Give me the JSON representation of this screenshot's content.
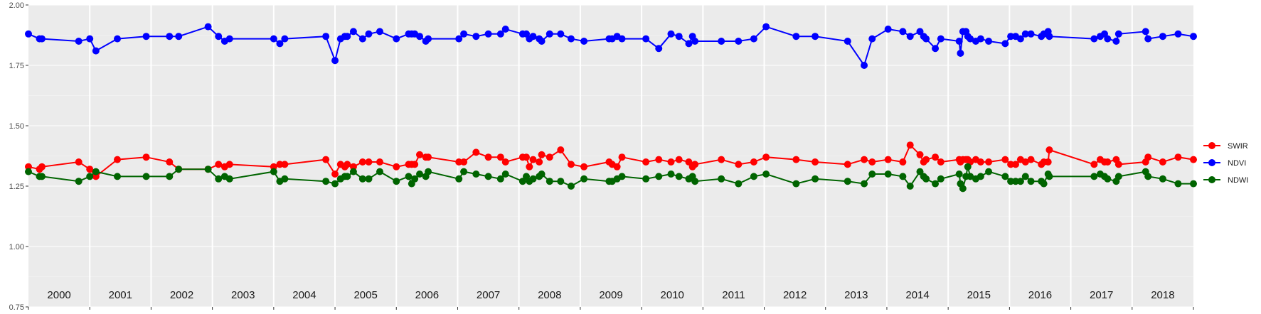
{
  "chart_data": {
    "type": "line",
    "title": "",
    "xlabel": "",
    "ylabel": "",
    "ylim": [
      0.75,
      2.0
    ],
    "xlim": [
      2000.0,
      2019.0
    ],
    "y_ticks": [
      {
        "value": 0.75,
        "label": "0.75"
      },
      {
        "value": 1.0,
        "label": "1.00"
      },
      {
        "value": 1.25,
        "label": "1.25"
      },
      {
        "value": 1.5,
        "label": "1.50"
      },
      {
        "value": 1.75,
        "label": "1.75"
      },
      {
        "value": 2.0,
        "label": "2.00"
      }
    ],
    "year_labels": [
      "2000",
      "2001",
      "2002",
      "2003",
      "2004",
      "2005",
      "2006",
      "2007",
      "2008",
      "2009",
      "2010",
      "2011",
      "2012",
      "2013",
      "2014",
      "2015",
      "2016",
      "2017",
      "2018"
    ],
    "grid": true,
    "legend_position": "right",
    "series": [
      {
        "name": "SWIR",
        "color": "#ff0000",
        "x": [
          2000.0,
          2000.18,
          2000.22,
          2000.82,
          2001.0,
          2001.1,
          2001.45,
          2001.92,
          2002.3,
          2002.45,
          2002.93,
          2003.1,
          2003.2,
          2003.28,
          2004.0,
          2004.1,
          2004.18,
          2004.85,
          2005.0,
          2005.09,
          2005.16,
          2005.2,
          2005.3,
          2005.45,
          2005.55,
          2005.73,
          2006.0,
          2006.2,
          2006.25,
          2006.3,
          2006.38,
          2006.48,
          2006.52,
          2007.02,
          2007.1,
          2007.3,
          2007.5,
          2007.7,
          2007.78,
          2008.06,
          2008.12,
          2008.17,
          2008.23,
          2008.33,
          2008.37,
          2008.5,
          2008.68,
          2008.85,
          2009.06,
          2009.47,
          2009.52,
          2009.6,
          2009.68,
          2010.07,
          2010.28,
          2010.48,
          2010.61,
          2010.77,
          2010.83,
          2010.87,
          2011.3,
          2011.58,
          2011.83,
          2012.03,
          2012.52,
          2012.83,
          2013.36,
          2013.63,
          2013.76,
          2014.02,
          2014.26,
          2014.38,
          2014.54,
          2014.6,
          2014.64,
          2014.79,
          2014.88,
          2015.18,
          2015.2,
          2015.24,
          2015.29,
          2015.32,
          2015.36,
          2015.45,
          2015.53,
          2015.66,
          2015.93,
          2016.02,
          2016.1,
          2016.18,
          2016.26,
          2016.35,
          2016.52,
          2016.56,
          2016.63,
          2016.65,
          2017.38,
          2017.48,
          2017.55,
          2017.6,
          2017.74,
          2017.78,
          2018.22,
          2018.26,
          2018.5,
          2018.75,
          2019.0
        ],
        "y": [
          1.33,
          1.32,
          1.33,
          1.35,
          1.32,
          1.29,
          1.36,
          1.37,
          1.35,
          1.32,
          1.32,
          1.34,
          1.33,
          1.34,
          1.33,
          1.34,
          1.34,
          1.36,
          1.3,
          1.34,
          1.33,
          1.34,
          1.33,
          1.35,
          1.35,
          1.35,
          1.33,
          1.34,
          1.34,
          1.34,
          1.38,
          1.37,
          1.37,
          1.35,
          1.35,
          1.39,
          1.37,
          1.37,
          1.35,
          1.37,
          1.37,
          1.33,
          1.36,
          1.35,
          1.38,
          1.37,
          1.4,
          1.34,
          1.33,
          1.35,
          1.34,
          1.33,
          1.37,
          1.35,
          1.36,
          1.35,
          1.36,
          1.35,
          1.33,
          1.34,
          1.36,
          1.34,
          1.35,
          1.37,
          1.36,
          1.35,
          1.34,
          1.36,
          1.35,
          1.36,
          1.35,
          1.42,
          1.38,
          1.35,
          1.36,
          1.37,
          1.35,
          1.36,
          1.35,
          1.36,
          1.36,
          1.36,
          1.35,
          1.36,
          1.35,
          1.35,
          1.36,
          1.34,
          1.34,
          1.36,
          1.35,
          1.36,
          1.34,
          1.35,
          1.35,
          1.4,
          1.34,
          1.36,
          1.35,
          1.35,
          1.36,
          1.34,
          1.35,
          1.37,
          1.35,
          1.37,
          1.36
        ]
      },
      {
        "name": "NDVI",
        "color": "#0000ff",
        "x": [
          2000.0,
          2000.18,
          2000.22,
          2000.82,
          2001.0,
          2001.1,
          2001.45,
          2001.92,
          2002.3,
          2002.45,
          2002.93,
          2003.1,
          2003.2,
          2003.28,
          2004.0,
          2004.1,
          2004.18,
          2004.85,
          2005.0,
          2005.09,
          2005.16,
          2005.2,
          2005.3,
          2005.45,
          2005.55,
          2005.73,
          2006.0,
          2006.2,
          2006.25,
          2006.3,
          2006.38,
          2006.48,
          2006.52,
          2007.02,
          2007.1,
          2007.3,
          2007.5,
          2007.7,
          2007.78,
          2008.06,
          2008.12,
          2008.17,
          2008.23,
          2008.33,
          2008.37,
          2008.5,
          2008.68,
          2008.85,
          2009.06,
          2009.47,
          2009.52,
          2009.6,
          2009.68,
          2010.07,
          2010.28,
          2010.48,
          2010.61,
          2010.77,
          2010.83,
          2010.87,
          2011.3,
          2011.58,
          2011.83,
          2012.03,
          2012.52,
          2012.83,
          2013.36,
          2013.63,
          2013.76,
          2014.02,
          2014.26,
          2014.38,
          2014.54,
          2014.6,
          2014.64,
          2014.79,
          2014.88,
          2015.18,
          2015.2,
          2015.24,
          2015.29,
          2015.32,
          2015.36,
          2015.45,
          2015.53,
          2015.66,
          2015.93,
          2016.02,
          2016.1,
          2016.18,
          2016.26,
          2016.35,
          2016.52,
          2016.56,
          2016.63,
          2016.65,
          2017.38,
          2017.48,
          2017.55,
          2017.6,
          2017.74,
          2017.78,
          2018.22,
          2018.26,
          2018.5,
          2018.75,
          2019.0
        ],
        "y": [
          1.88,
          1.86,
          1.86,
          1.85,
          1.86,
          1.81,
          1.86,
          1.87,
          1.87,
          1.87,
          1.91,
          1.87,
          1.85,
          1.86,
          1.86,
          1.84,
          1.86,
          1.87,
          1.77,
          1.86,
          1.87,
          1.87,
          1.89,
          1.86,
          1.88,
          1.89,
          1.86,
          1.88,
          1.88,
          1.88,
          1.87,
          1.85,
          1.86,
          1.86,
          1.88,
          1.87,
          1.88,
          1.88,
          1.9,
          1.88,
          1.88,
          1.86,
          1.87,
          1.86,
          1.85,
          1.88,
          1.88,
          1.86,
          1.85,
          1.86,
          1.86,
          1.87,
          1.86,
          1.86,
          1.82,
          1.88,
          1.87,
          1.84,
          1.87,
          1.85,
          1.85,
          1.85,
          1.86,
          1.91,
          1.87,
          1.87,
          1.85,
          1.75,
          1.86,
          1.9,
          1.89,
          1.87,
          1.89,
          1.87,
          1.86,
          1.82,
          1.86,
          1.85,
          1.8,
          1.89,
          1.89,
          1.87,
          1.86,
          1.85,
          1.86,
          1.85,
          1.84,
          1.87,
          1.87,
          1.86,
          1.88,
          1.88,
          1.87,
          1.88,
          1.89,
          1.87,
          1.86,
          1.87,
          1.88,
          1.86,
          1.85,
          1.88,
          1.89,
          1.86,
          1.87,
          1.88,
          1.87
        ]
      },
      {
        "name": "NDWI",
        "color": "#006400",
        "x": [
          2000.0,
          2000.18,
          2000.22,
          2000.82,
          2001.0,
          2001.1,
          2001.45,
          2001.92,
          2002.3,
          2002.45,
          2002.93,
          2003.1,
          2003.2,
          2003.28,
          2004.0,
          2004.1,
          2004.18,
          2004.85,
          2005.0,
          2005.09,
          2005.16,
          2005.2,
          2005.3,
          2005.45,
          2005.55,
          2005.73,
          2006.0,
          2006.2,
          2006.25,
          2006.3,
          2006.38,
          2006.48,
          2006.52,
          2007.02,
          2007.1,
          2007.3,
          2007.5,
          2007.7,
          2007.78,
          2008.06,
          2008.12,
          2008.17,
          2008.23,
          2008.33,
          2008.37,
          2008.5,
          2008.68,
          2008.85,
          2009.06,
          2009.47,
          2009.52,
          2009.6,
          2009.68,
          2010.07,
          2010.28,
          2010.48,
          2010.61,
          2010.77,
          2010.83,
          2010.87,
          2011.3,
          2011.58,
          2011.83,
          2012.03,
          2012.52,
          2012.83,
          2013.36,
          2013.63,
          2013.76,
          2014.02,
          2014.26,
          2014.38,
          2014.54,
          2014.6,
          2014.64,
          2014.79,
          2014.88,
          2015.18,
          2015.2,
          2015.24,
          2015.29,
          2015.32,
          2015.36,
          2015.45,
          2015.53,
          2015.66,
          2015.93,
          2016.02,
          2016.1,
          2016.18,
          2016.26,
          2016.35,
          2016.52,
          2016.56,
          2016.63,
          2016.65,
          2017.38,
          2017.48,
          2017.55,
          2017.6,
          2017.74,
          2017.78,
          2018.22,
          2018.26,
          2018.5,
          2018.75,
          2019.0
        ],
        "y": [
          1.31,
          1.29,
          1.29,
          1.27,
          1.29,
          1.31,
          1.29,
          1.29,
          1.29,
          1.32,
          1.32,
          1.28,
          1.29,
          1.28,
          1.31,
          1.27,
          1.28,
          1.27,
          1.26,
          1.28,
          1.29,
          1.29,
          1.31,
          1.28,
          1.28,
          1.31,
          1.27,
          1.29,
          1.26,
          1.28,
          1.3,
          1.29,
          1.31,
          1.28,
          1.31,
          1.3,
          1.29,
          1.28,
          1.3,
          1.27,
          1.29,
          1.27,
          1.28,
          1.29,
          1.3,
          1.27,
          1.27,
          1.25,
          1.28,
          1.27,
          1.27,
          1.28,
          1.29,
          1.28,
          1.29,
          1.3,
          1.29,
          1.28,
          1.29,
          1.27,
          1.28,
          1.26,
          1.29,
          1.3,
          1.26,
          1.28,
          1.27,
          1.26,
          1.3,
          1.3,
          1.29,
          1.25,
          1.31,
          1.29,
          1.28,
          1.26,
          1.28,
          1.3,
          1.26,
          1.24,
          1.29,
          1.33,
          1.29,
          1.28,
          1.29,
          1.31,
          1.29,
          1.27,
          1.27,
          1.27,
          1.29,
          1.27,
          1.27,
          1.26,
          1.3,
          1.29,
          1.29,
          1.3,
          1.29,
          1.28,
          1.27,
          1.29,
          1.31,
          1.29,
          1.28,
          1.26,
          1.26
        ]
      }
    ]
  }
}
